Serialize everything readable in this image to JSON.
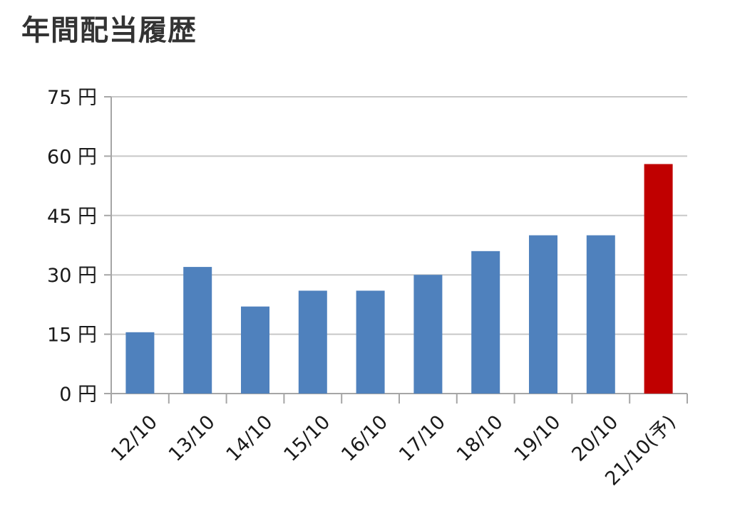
{
  "chart_data": {
    "type": "bar",
    "title": "年間配当履歴",
    "xlabel": "",
    "ylabel": "",
    "categories": [
      "12/10",
      "13/10",
      "14/10",
      "15/10",
      "16/10",
      "17/10",
      "18/10",
      "19/10",
      "20/10",
      "21/10(予)"
    ],
    "values": [
      15.5,
      32,
      22,
      26,
      26,
      30,
      36,
      40,
      40,
      58
    ],
    "ylim": [
      0,
      75
    ],
    "yticks": [
      0,
      15,
      30,
      45,
      60,
      75
    ],
    "y_unit": "円",
    "grid": true,
    "legend": "none",
    "colors": {
      "bar": "#4f81bd",
      "highlight": "#c00000",
      "grid": "#c8c8c8",
      "axis": "#a6a6a6"
    },
    "highlight_index": 9
  }
}
